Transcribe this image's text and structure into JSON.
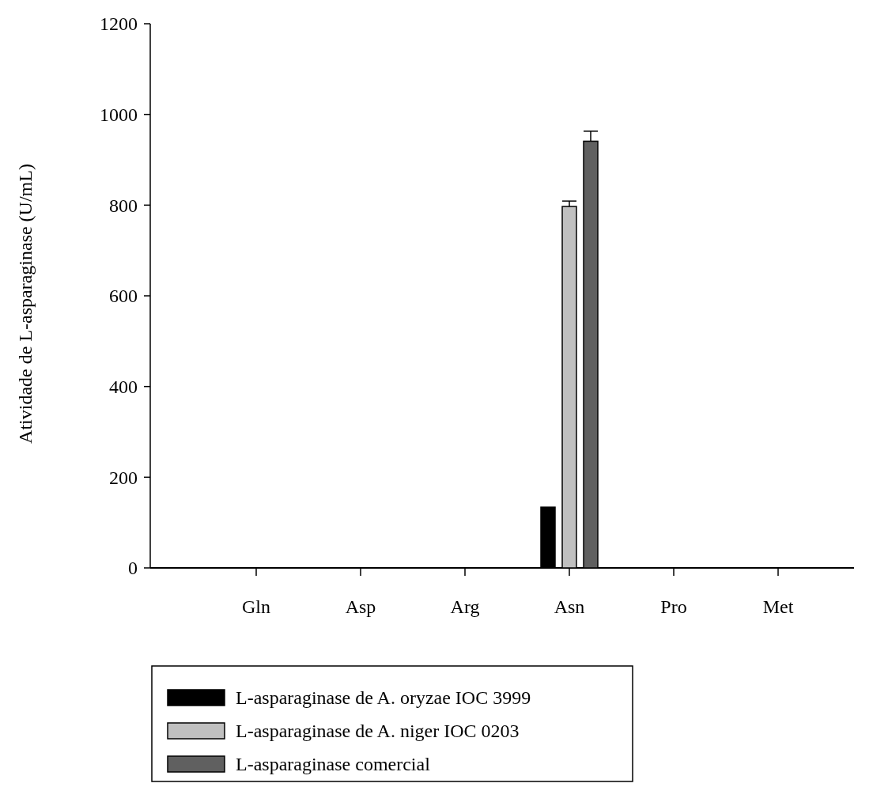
{
  "chart_data": {
    "type": "bar",
    "ylabel": "Atividade de L-asparaginase (U/mL)",
    "categories": [
      "Gln",
      "Asp",
      "Arg",
      "Asn",
      "Pro",
      "Met"
    ],
    "series": [
      {
        "name": "L-asparaginase de A. oryzae IOC 3999",
        "color": "#000000",
        "values": [
          0,
          0,
          0,
          134,
          0,
          0
        ]
      },
      {
        "name": "L-asparaginase de A. niger IOC 0203",
        "color": "#c0c0c0",
        "values": [
          0,
          0,
          0,
          797,
          0,
          0
        ],
        "errors": [
          null,
          null,
          null,
          12,
          null,
          null
        ]
      },
      {
        "name": "L-asparaginase comercial",
        "color": "#606060",
        "values": [
          0,
          0,
          0,
          941,
          0,
          0
        ],
        "errors": [
          null,
          null,
          null,
          22,
          null,
          null
        ]
      }
    ],
    "ylim": [
      0,
      1200
    ],
    "yticks": [
      0,
      200,
      400,
      600,
      800,
      1000,
      1200
    ],
    "grid": false,
    "legend": "bottom"
  }
}
